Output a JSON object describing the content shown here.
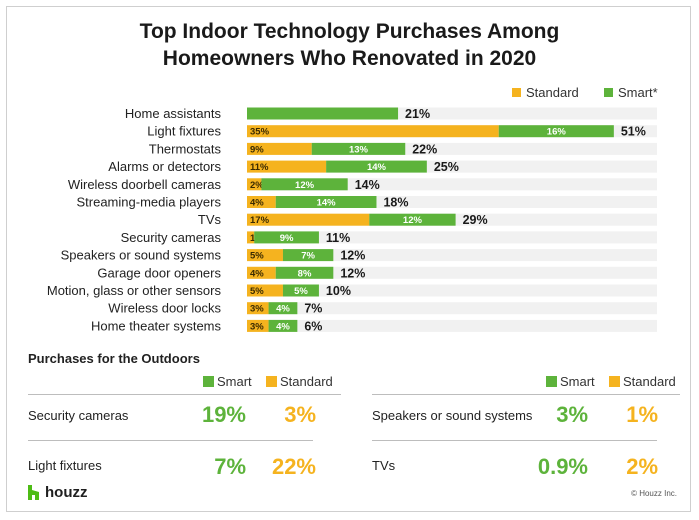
{
  "title_line1": "Top Indoor Technology Purchases Among",
  "title_line2": "Homeowners Who Renovated in 2020",
  "legend": {
    "standard": "Standard",
    "smart": "Smart*"
  },
  "colors": {
    "standard": "#f5b31f",
    "smart": "#5db33b",
    "track": "#f1f1f1"
  },
  "chart_data": {
    "type": "bar",
    "orientation": "horizontal",
    "stacked": true,
    "categories": [
      "Home assistants",
      "Light fixtures",
      "Thermostats",
      "Alarms or detectors",
      "Wireless doorbell cameras",
      "Streaming-media players",
      "TVs",
      "Security cameras",
      "Speakers or sound systems",
      "Garage door openers",
      "Motion, glass or other sensors",
      "Wireless door locks",
      "Home theater systems"
    ],
    "series": [
      {
        "name": "Standard",
        "values": [
          0,
          35,
          9,
          11,
          2,
          4,
          17,
          1,
          5,
          4,
          5,
          3,
          3
        ],
        "labels": [
          "",
          "35%",
          "9%",
          "11%",
          "2%",
          "4%",
          "17%",
          "1%",
          "5%",
          "4%",
          "5%",
          "3%",
          "3%"
        ]
      },
      {
        "name": "Smart*",
        "values": [
          21,
          16,
          13,
          14,
          12,
          14,
          12,
          9,
          7,
          8,
          5,
          4,
          4
        ],
        "labels": [
          "",
          "16%",
          "13%",
          "14%",
          "12%",
          "14%",
          "12%",
          "9%",
          "7%",
          "8%",
          "5%",
          "4%",
          "4%"
        ]
      }
    ],
    "totals": [
      "21%",
      "51%",
      "22%",
      "25%",
      "14%",
      "18%",
      "29%",
      "11%",
      "12%",
      "12%",
      "10%",
      "7%",
      "6%"
    ],
    "xlim": [
      0,
      57
    ]
  },
  "outdoor": {
    "heading": "Purchases for the Outdoors",
    "smart_label": "Smart",
    "standard_label": "Standard",
    "left": [
      {
        "label": "Security cameras",
        "smart": "19%",
        "standard": "3%"
      },
      {
        "label": "Light fixtures",
        "smart": "7%",
        "standard": "22%"
      }
    ],
    "right": [
      {
        "label": "Speakers or sound systems",
        "smart": "3%",
        "standard": "1%"
      },
      {
        "label": "TVs",
        "smart": "0.9%",
        "standard": "2%"
      }
    ]
  },
  "brand": "houzz",
  "copyright": "© Houzz Inc."
}
